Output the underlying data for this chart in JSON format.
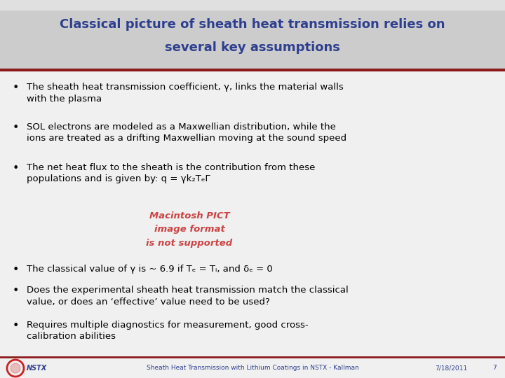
{
  "title_line1": "Classical picture of sheath heat transmission relies on",
  "title_line2": "several key assumptions",
  "title_color": "#2E3F8F",
  "title_bg_color": "#CCCCCC",
  "accent_line_color": "#8B1A1A",
  "background_color": "#F0F0F0",
  "bullet1": "The sheath heat transmission coefficient, γ, links the material walls\nwith the plasma",
  "bullet2": "SOL electrons are modeled as a Maxwellian distribution, while the\nions are treated as a drifting Maxwellian moving at the sound speed",
  "bullet3": "The net heat flux to the sheath is the contribution from these\npopulations and is given by: q = γk₂TₑΓ",
  "pict_text_line1": "Macintosh PICT",
  "pict_text_line2": "image format",
  "pict_text_line3": "is not supported",
  "pict_text_color": "#CC4444",
  "bullet4": "The classical value of γ is ~ 6.9 if Tₑ = Tᵢ, and δₑ = 0",
  "bullet5": "Does the experimental sheath heat transmission match the classical\nvalue, or does an ‘effective’ value need to be used?",
  "bullet6": "Requires multiple diagnostics for measurement, good cross-\ncalibration abilities",
  "footer_left": "NSTX",
  "footer_center": "Sheath Heat Transmission with Lithium Coatings in NSTX - Kallman",
  "footer_right": "7/18/2011",
  "footer_page": "7",
  "footer_color": "#2E3F8F",
  "footer_line_color": "#8B1A1A"
}
